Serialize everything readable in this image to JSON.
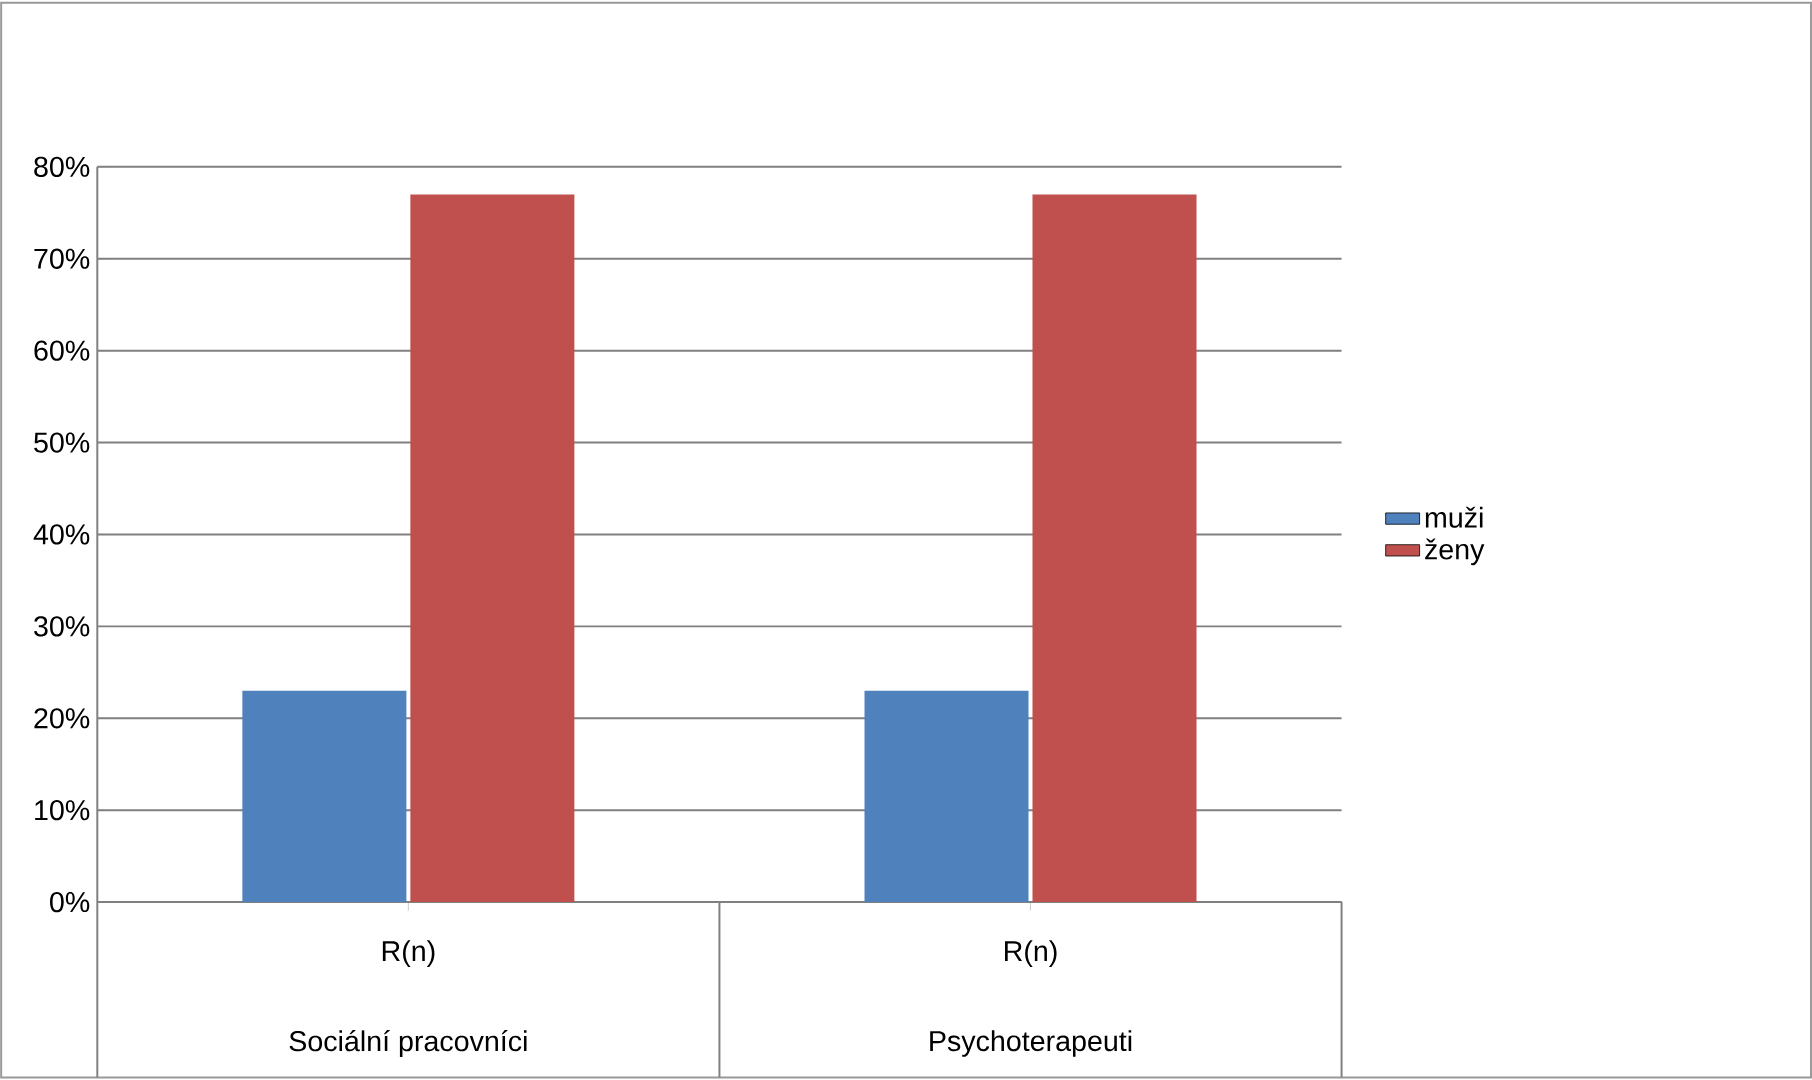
{
  "chart_data": {
    "type": "bar",
    "categories": [
      "R(n)",
      "R(n)"
    ],
    "series": [
      {
        "name": "muži",
        "color": "#4f81bd",
        "values": [
          23,
          23
        ]
      },
      {
        "name": "ženy",
        "color": "#c0504d",
        "values": [
          77,
          77
        ]
      }
    ],
    "ylim": [
      0,
      80
    ],
    "yticks": [
      {
        "value": 0,
        "label": "0%"
      },
      {
        "value": 10,
        "label": "10%"
      },
      {
        "value": 20,
        "label": "20%"
      },
      {
        "value": 30,
        "label": "30%"
      },
      {
        "value": 40,
        "label": "40%"
      },
      {
        "value": 50,
        "label": "50%"
      },
      {
        "value": 60,
        "label": "60%"
      },
      {
        "value": 70,
        "label": "70%"
      },
      {
        "value": 80,
        "label": "80%"
      }
    ],
    "grid": "y",
    "legend": "right",
    "annotations": [
      "Sociální pracovníci",
      "Psychoterapeuti"
    ]
  }
}
